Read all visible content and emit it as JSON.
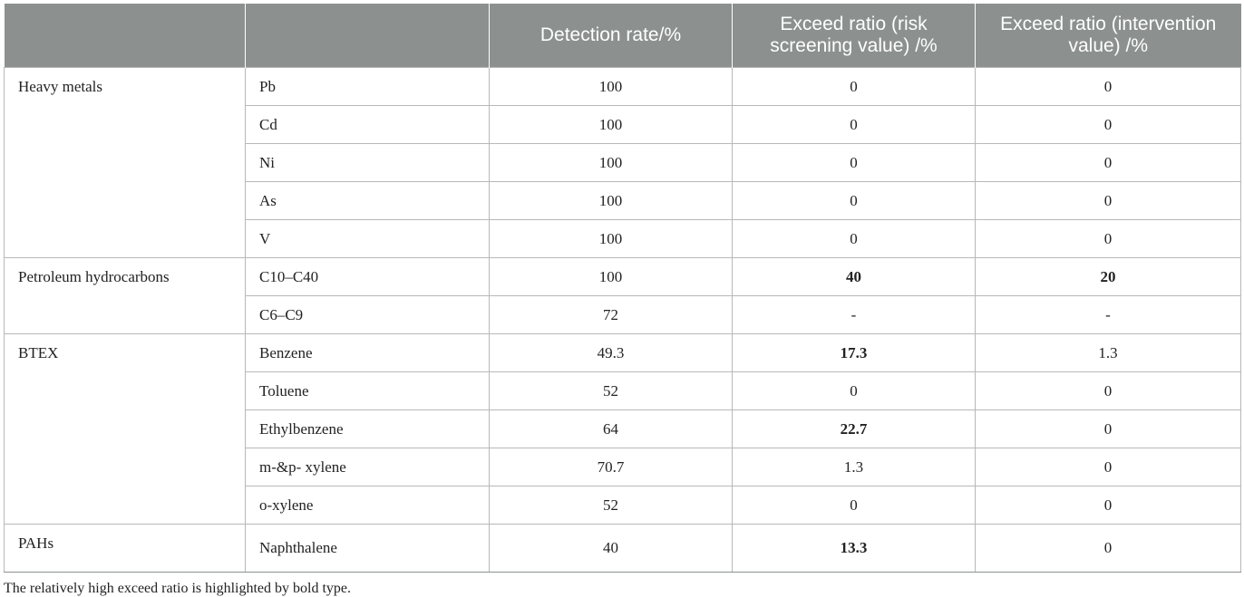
{
  "table": {
    "headers": [
      "",
      "",
      "Detection rate/%",
      "Exceed ratio (risk screening value) /%",
      "Exceed ratio (intervention value) /%"
    ],
    "groups": [
      {
        "name": "Heavy metals",
        "rows": [
          {
            "item": "Pb",
            "detection": "100",
            "exceed_risk": "0",
            "exceed_intervention": "0"
          },
          {
            "item": "Cd",
            "detection": "100",
            "exceed_risk": "0",
            "exceed_intervention": "0"
          },
          {
            "item": "Ni",
            "detection": "100",
            "exceed_risk": "0",
            "exceed_intervention": "0"
          },
          {
            "item": "As",
            "detection": "100",
            "exceed_risk": "0",
            "exceed_intervention": "0"
          },
          {
            "item": "V",
            "detection": "100",
            "exceed_risk": "0",
            "exceed_intervention": "0"
          }
        ]
      },
      {
        "name": "Petroleum hydrocarbons",
        "rows": [
          {
            "item": "C10–C40",
            "detection": "100",
            "exceed_risk": "40",
            "exceed_intervention": "20"
          },
          {
            "item": "C6–C9",
            "detection": "72",
            "exceed_risk": "-",
            "exceed_intervention": "-"
          }
        ]
      },
      {
        "name": "BTEX",
        "rows": [
          {
            "item": "Benzene",
            "detection": "49.3",
            "exceed_risk": "17.3",
            "exceed_intervention": "1.3"
          },
          {
            "item": "Toluene",
            "detection": "52",
            "exceed_risk": "0",
            "exceed_intervention": "0"
          },
          {
            "item": "Ethylbenzene",
            "detection": "64",
            "exceed_risk": "22.7",
            "exceed_intervention": "0"
          },
          {
            "item": "m-&p- xylene",
            "detection": "70.7",
            "exceed_risk": "1.3",
            "exceed_intervention": "0"
          },
          {
            "item": "o-xylene",
            "detection": "52",
            "exceed_risk": "0",
            "exceed_intervention": "0"
          }
        ]
      },
      {
        "name": "PAHs",
        "rows": [
          {
            "item": "Naphthalene",
            "detection": "40",
            "exceed_risk": "13.3",
            "exceed_intervention": "0"
          }
        ]
      }
    ]
  },
  "footnote": "The relatively high exceed ratio is highlighted by bold type."
}
